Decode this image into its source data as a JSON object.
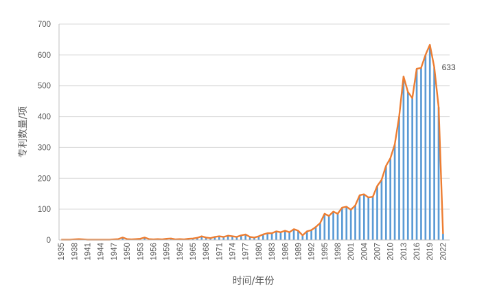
{
  "chart_data": {
    "type": "bar+line",
    "xlabel": "时间/年份",
    "ylabel": "专利数量/项",
    "ylim": [
      0,
      700
    ],
    "yticks": [
      0,
      100,
      200,
      300,
      400,
      500,
      600,
      700
    ],
    "x_start": 1935,
    "x_end": 2023,
    "xtick_step": 3,
    "grid": "horizontal",
    "legend": "none",
    "colors": {
      "bar": "#5B9BD5",
      "line": "#ED7D31",
      "grid": "#D9D9D9",
      "axis": "#BFBFBF"
    },
    "series": [
      {
        "type": "bar",
        "values": [
          1,
          1,
          1,
          2,
          3,
          2,
          1,
          1,
          1,
          1,
          1,
          1,
          2,
          3,
          8,
          3,
          2,
          3,
          4,
          8,
          3,
          2,
          3,
          2,
          4,
          5,
          2,
          3,
          2,
          4,
          5,
          7,
          12,
          8,
          6,
          10,
          12,
          10,
          14,
          12,
          10,
          15,
          18,
          10,
          8,
          12,
          18,
          22,
          22,
          28,
          25,
          30,
          25,
          35,
          30,
          15,
          28,
          32,
          42,
          55,
          85,
          78,
          92,
          85,
          105,
          108,
          98,
          112,
          145,
          148,
          138,
          140,
          175,
          195,
          240,
          265,
          310,
          400,
          530,
          480,
          460,
          555,
          558,
          600,
          633,
          560,
          430,
          20
        ]
      },
      {
        "type": "line",
        "values": [
          1,
          1,
          1,
          2,
          3,
          2,
          1,
          1,
          1,
          1,
          1,
          1,
          2,
          3,
          8,
          3,
          2,
          3,
          4,
          8,
          3,
          2,
          3,
          2,
          4,
          5,
          2,
          3,
          2,
          4,
          5,
          7,
          12,
          8,
          6,
          10,
          12,
          10,
          14,
          12,
          10,
          15,
          18,
          10,
          8,
          12,
          18,
          22,
          22,
          28,
          25,
          30,
          25,
          35,
          30,
          15,
          28,
          32,
          42,
          55,
          85,
          78,
          92,
          85,
          105,
          108,
          98,
          112,
          145,
          148,
          138,
          140,
          175,
          195,
          240,
          265,
          310,
          400,
          530,
          480,
          460,
          555,
          558,
          600,
          633,
          560,
          430,
          20
        ]
      }
    ],
    "annotations": [
      {
        "x": 2020,
        "label": "633"
      }
    ]
  }
}
